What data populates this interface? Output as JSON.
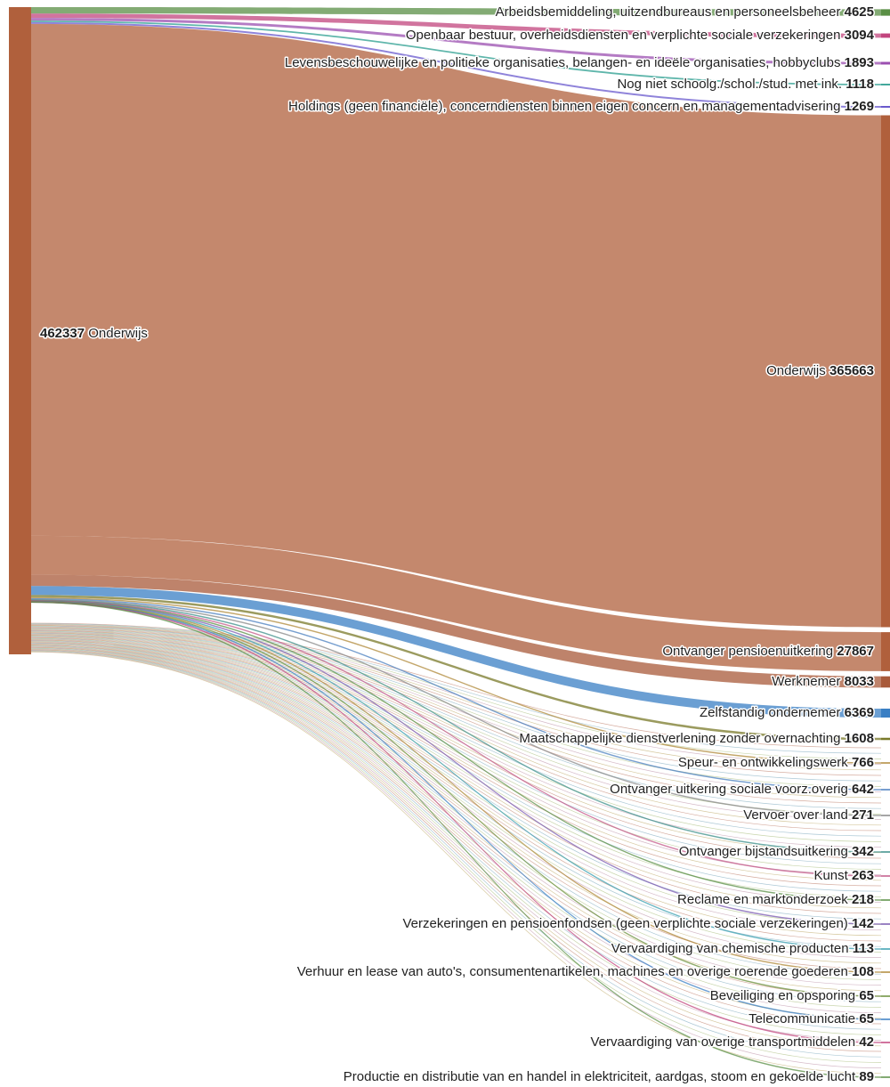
{
  "chart_data": {
    "type": "sankey",
    "source": {
      "name": "Onderwijs",
      "value": 462337,
      "color": "#b0603c"
    },
    "targets": [
      {
        "name": "Arbeidsbemiddeling, uitzendbureaus en personeelsbeheer",
        "value": 4625,
        "color": "#5a8f45"
      },
      {
        "name": "Openbaar bestuur, overheidsdiensten en verplichte sociale verzekeringen",
        "value": 3094,
        "color": "#c2457e"
      },
      {
        "name": "Levensbeschouwelijke en politieke organisaties, belangen- en ideële organisaties, hobbyclubs",
        "value": 1893,
        "color": "#9b4fb0"
      },
      {
        "name": "Nog niet schoolg./schol./stud. met ink.",
        "value": 1118,
        "color": "#2a9d8f"
      },
      {
        "name": "Holdings (geen financiële), concerndiensten binnen eigen concern en managementadvisering",
        "value": 1269,
        "color": "#6a5acd"
      },
      {
        "name": "Onderwijs",
        "value": 365663,
        "color": "#b0603c"
      },
      {
        "name": "Ontvanger pensioenuitkering",
        "value": 27867,
        "color": "#b0603c"
      },
      {
        "name": "Werknemer",
        "value": 8033,
        "color": "#a85a3a"
      },
      {
        "name": "Zelfstandig ondernemer",
        "value": 6369,
        "color": "#3a7fc4"
      },
      {
        "name": "Maatschappelijke dienstverlening zonder overnachting",
        "value": 1608,
        "color": "#7a7a2a"
      },
      {
        "name": "Speur- en ontwikkelingswerk",
        "value": 766,
        "color": "#b08a3a"
      },
      {
        "name": "Ontvanger uitkering sociale voorz.overig",
        "value": 642,
        "color": "#4a7fbf"
      },
      {
        "name": "Vervoer over land",
        "value": 271,
        "color": "#888888"
      },
      {
        "name": "Ontvanger bijstandsuitkering",
        "value": 342,
        "color": "#3c8f8a"
      },
      {
        "name": "Kunst",
        "value": 263,
        "color": "#c45a8a"
      },
      {
        "name": "Reclame en marktonderzoek",
        "value": 218,
        "color": "#5a8f45"
      },
      {
        "name": "Verzekeringen en pensioenfondsen (geen verplichte sociale verzekeringen)",
        "value": 142,
        "color": "#7a5ab0"
      },
      {
        "name": "Vervaardiging van chemische producten",
        "value": 113,
        "color": "#3a9fb0"
      },
      {
        "name": "Verhuur en lease van auto's, consumentenartikelen, machines en overige roerende goederen",
        "value": 108,
        "color": "#b08a3a"
      },
      {
        "name": "Beveiliging en opsporing",
        "value": 65,
        "color": "#6a8f3a"
      },
      {
        "name": "Telecommunicatie",
        "value": 65,
        "color": "#3a7fc4"
      },
      {
        "name": "Vervaardiging van overige transportmiddelen",
        "value": 42,
        "color": "#c2457e"
      },
      {
        "name": "Productie en distributie van en handel in elektriciteit, aardgas, stoom en gekoelde lucht",
        "value": 89,
        "color": "#5a8f45"
      }
    ]
  }
}
